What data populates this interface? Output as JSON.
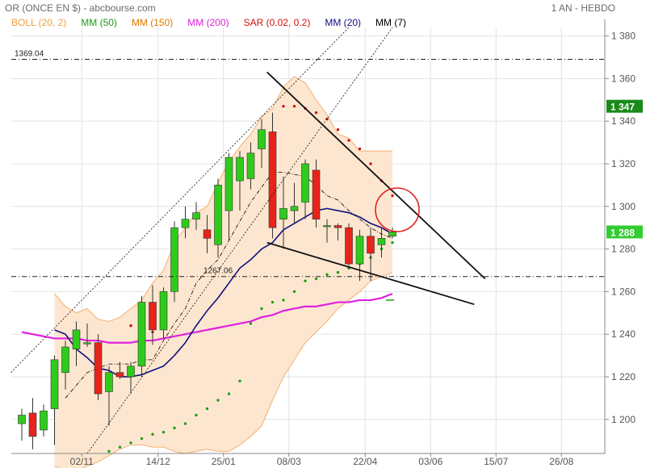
{
  "header": {
    "title": "OR (ONCE EN $) - abcbourse.com",
    "period": "1 AN - HEBDO"
  },
  "legend": [
    {
      "label": "BOLL (20, 2)",
      "color": "#f0a040"
    },
    {
      "label": "MM (50)",
      "color": "#1a9a1a"
    },
    {
      "label": "MM (150)",
      "color": "#e07800"
    },
    {
      "label": "MM (200)",
      "color": "#e020e0"
    },
    {
      "label": "SAR (0.02, 0.2)",
      "color": "#d01010"
    },
    {
      "label": "MM (20)",
      "color": "#101080"
    },
    {
      "label": "MM (7)",
      "color": "#000000"
    }
  ],
  "chart_data": {
    "type": "candlestick",
    "x_tick_labels": [
      "02/11",
      "14/12",
      "25/01",
      "08/03",
      "22/04",
      "03/06",
      "15/07",
      "26/08"
    ],
    "y_ticks": [
      1200,
      1220,
      1240,
      1260,
      1280,
      1300,
      1320,
      1340,
      1360,
      1380
    ],
    "y_tick_labels": [
      "1 200",
      "1 220",
      "1 240",
      "1 260",
      "1 280",
      "1 300",
      "1 320",
      "1 340",
      "1 360",
      "1 380"
    ],
    "ylim": [
      1184,
      1384
    ],
    "price_tags": [
      {
        "label": "1 347",
        "value": 1347,
        "color": "#1a8a1a"
      },
      {
        "label": "1 288",
        "value": 1288,
        "color": "#33cc33"
      }
    ],
    "annotations": [
      {
        "label": "1369.04",
        "value": 1369.04
      },
      {
        "label": "1267.06",
        "value": 1267.06
      }
    ],
    "candles": [
      {
        "o": 1198,
        "h": 1205,
        "l": 1190,
        "c": 1202
      },
      {
        "o": 1203,
        "h": 1210,
        "l": 1186,
        "c": 1192
      },
      {
        "o": 1195,
        "h": 1207,
        "l": 1192,
        "c": 1204
      },
      {
        "o": 1205,
        "h": 1230,
        "l": 1188,
        "c": 1228
      },
      {
        "o": 1222,
        "h": 1237,
        "l": 1214,
        "c": 1234
      },
      {
        "o": 1233,
        "h": 1246,
        "l": 1225,
        "c": 1242
      },
      {
        "o": 1236,
        "h": 1245,
        "l": 1234,
        "c": 1236
      },
      {
        "o": 1236,
        "h": 1240,
        "l": 1209,
        "c": 1212
      },
      {
        "o": 1213,
        "h": 1225,
        "l": 1197,
        "c": 1222
      },
      {
        "o": 1222,
        "h": 1227,
        "l": 1219,
        "c": 1220
      },
      {
        "o": 1220,
        "h": 1227,
        "l": 1212,
        "c": 1225
      },
      {
        "o": 1225,
        "h": 1258,
        "l": 1220,
        "c": 1255
      },
      {
        "o": 1255,
        "h": 1263,
        "l": 1235,
        "c": 1242
      },
      {
        "o": 1242,
        "h": 1262,
        "l": 1238,
        "c": 1260
      },
      {
        "o": 1260,
        "h": 1293,
        "l": 1255,
        "c": 1290
      },
      {
        "o": 1290,
        "h": 1300,
        "l": 1285,
        "c": 1294
      },
      {
        "o": 1294,
        "h": 1302,
        "l": 1289,
        "c": 1297
      },
      {
        "o": 1289,
        "h": 1296,
        "l": 1278,
        "c": 1285
      },
      {
        "o": 1282,
        "h": 1313,
        "l": 1276,
        "c": 1310
      },
      {
        "o": 1298,
        "h": 1325,
        "l": 1284,
        "c": 1323
      },
      {
        "o": 1312,
        "h": 1326,
        "l": 1298,
        "c": 1323
      },
      {
        "o": 1313,
        "h": 1330,
        "l": 1308,
        "c": 1325
      },
      {
        "o": 1327,
        "h": 1341,
        "l": 1318,
        "c": 1336
      },
      {
        "o": 1335,
        "h": 1344,
        "l": 1285,
        "c": 1290
      },
      {
        "o": 1294,
        "h": 1314,
        "l": 1280,
        "c": 1299
      },
      {
        "o": 1298,
        "h": 1311,
        "l": 1292,
        "c": 1300
      },
      {
        "o": 1302,
        "h": 1322,
        "l": 1294,
        "c": 1320
      },
      {
        "o": 1317,
        "h": 1322,
        "l": 1290,
        "c": 1294
      },
      {
        "o": 1291,
        "h": 1294,
        "l": 1283,
        "c": 1291
      },
      {
        "o": 1291,
        "h": 1292,
        "l": 1284,
        "c": 1290
      },
      {
        "o": 1290,
        "h": 1292,
        "l": 1272,
        "c": 1273
      },
      {
        "o": 1273,
        "h": 1289,
        "l": 1265,
        "c": 1286
      },
      {
        "o": 1286,
        "h": 1290,
        "l": 1265,
        "c": 1278
      },
      {
        "o": 1282,
        "h": 1290,
        "l": 1276,
        "c": 1285
      },
      {
        "o": 1286,
        "h": 1290,
        "l": 1285,
        "c": 1288
      }
    ],
    "bollinger_upper": [
      null,
      null,
      null,
      1259,
      1253,
      1250,
      1252,
      1247,
      1246,
      1248,
      1252,
      1256,
      1264,
      1270,
      1283,
      1290,
      1297,
      1300,
      1311,
      1321,
      1328,
      1334,
      1342,
      1346,
      1356,
      1361,
      1358,
      1350,
      1343,
      1334,
      1332,
      1326,
      1326,
      1326,
      1326
    ],
    "bollinger_lower": [
      null,
      null,
      null,
      1178,
      1176,
      1176,
      1178,
      1180,
      1183,
      1186,
      1188,
      1188,
      1187,
      1187,
      1185,
      1184,
      1185,
      1186,
      1185,
      1185,
      1188,
      1192,
      1197,
      1209,
      1220,
      1228,
      1236,
      1241,
      1246,
      1252,
      1256,
      1260,
      1265,
      1267,
      1269
    ],
    "mm20": [
      null,
      null,
      null,
      1242,
      1240,
      1233,
      1229,
      1224,
      1223,
      1220,
      1220,
      1221,
      1223,
      1225,
      1230,
      1236,
      1244,
      1251,
      1257,
      1264,
      1271,
      1275,
      1280,
      1283,
      1289,
      1292,
      1295,
      1298,
      1299,
      1298,
      1297,
      1295,
      1292,
      1290,
      1287
    ],
    "mm7": [
      null,
      null,
      null,
      null,
      1210,
      1216,
      1222,
      1224,
      1226,
      1226,
      1226,
      1228,
      1228,
      1237,
      1245,
      1252,
      1264,
      1270,
      1275,
      1284,
      1293,
      1302,
      1309,
      1316,
      1316,
      1315,
      1314,
      1310,
      1305,
      1303,
      1298,
      1294,
      1290,
      1287,
      1285
    ],
    "mm200": [
      1241,
      1240,
      1239,
      1238,
      1238,
      1238,
      1237,
      1237,
      1236,
      1236,
      1236,
      1237,
      1237,
      1238,
      1239,
      1240,
      1241,
      1242,
      1243,
      1244,
      1245,
      1246,
      1248,
      1249,
      1251,
      1252,
      1253,
      1253,
      1254,
      1255,
      1255,
      1256,
      1256,
      1257,
      1259
    ],
    "mm50_tail": [
      {
        "i": 34,
        "v": 1256
      }
    ],
    "sar": [
      null,
      null,
      null,
      null,
      null,
      null,
      null,
      null,
      1185,
      1187,
      1189,
      1191,
      1193,
      1194,
      1196,
      1198,
      1202,
      1205,
      1209,
      1212,
      1218,
      1245,
      1252,
      1255,
      1256,
      1260,
      1265,
      1266,
      1268,
      1269,
      1271,
      1273,
      1276,
      1280,
      1283
    ],
    "sar_above": [
      {
        "i": 10,
        "v": 1244
      },
      {
        "i": 11,
        "v": 1242
      },
      {
        "i": 12,
        "v": 1241
      },
      {
        "i": 24,
        "v": 1347
      },
      {
        "i": 25,
        "v": 1347
      },
      {
        "i": 26,
        "v": 1346
      },
      {
        "i": 27,
        "v": 1344
      },
      {
        "i": 28,
        "v": 1341
      },
      {
        "i": 29,
        "v": 1336
      },
      {
        "i": 30,
        "v": 1331
      },
      {
        "i": 31,
        "v": 1327
      },
      {
        "i": 32,
        "v": 1320
      },
      {
        "i": 33,
        "v": 1312
      },
      {
        "i": 34,
        "v": 1305
      }
    ],
    "trendlines": [
      {
        "name": "resistance",
        "from": {
          "i": 22.5,
          "v": 1363
        },
        "to": {
          "i": 42.5,
          "v": 1266
        }
      },
      {
        "name": "support",
        "from": {
          "i": 22.5,
          "v": 1283
        },
        "to": {
          "i": 41.5,
          "v": 1254
        }
      },
      {
        "name": "channel-upper",
        "from": {
          "i": -1,
          "v": 1222
        },
        "to": {
          "i": 30,
          "v": 1384
        }
      },
      {
        "name": "channel-lower",
        "from": {
          "i": 6,
          "v": 1184
        },
        "to": {
          "i": 34,
          "v": 1384
        }
      }
    ]
  }
}
